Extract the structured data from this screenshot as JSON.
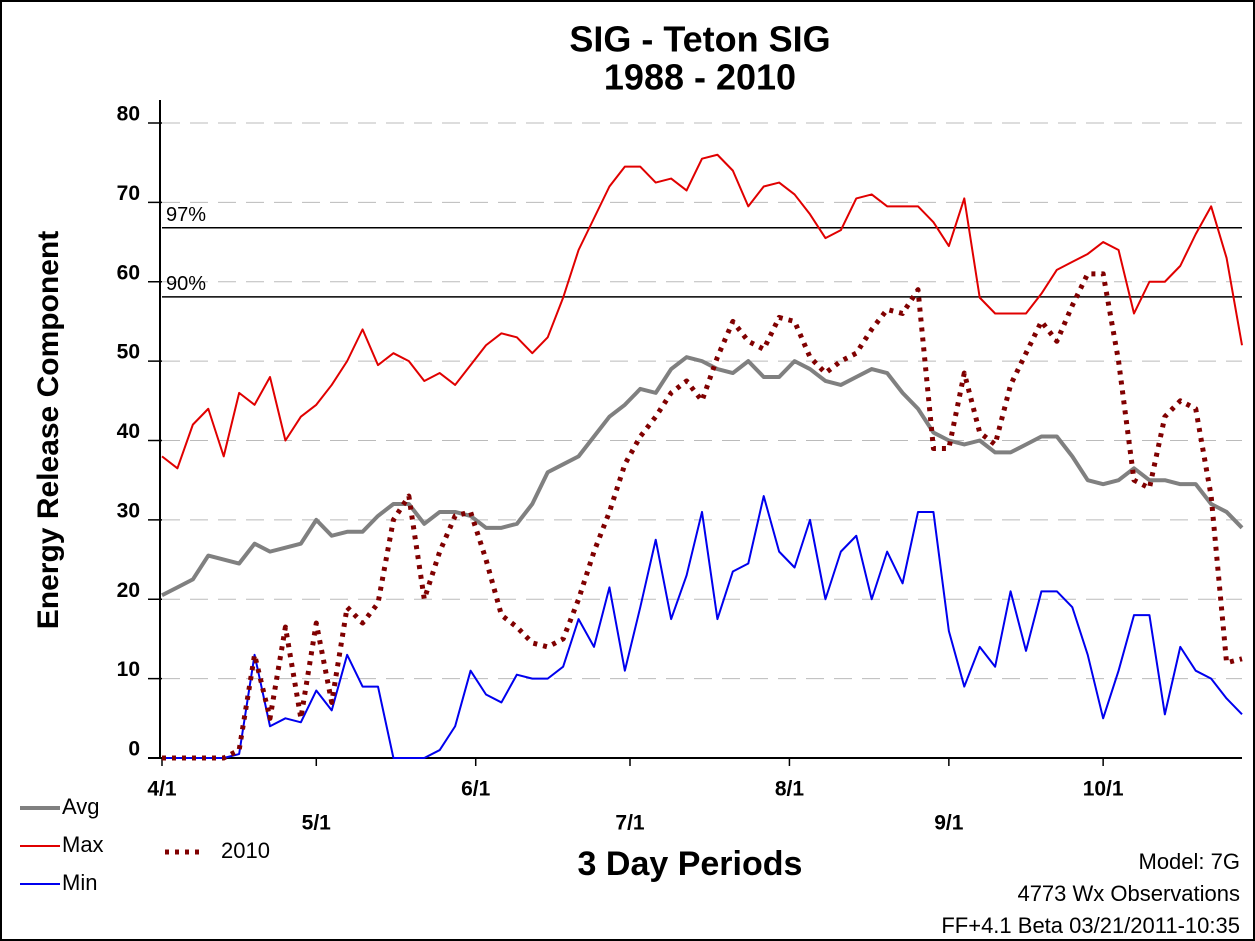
{
  "chart_data": {
    "type": "line",
    "title": "SIG - Teton SIG",
    "subtitle": "1988 - 2010",
    "y_label": "Energy Release Component",
    "x_label": "3 Day Periods",
    "notes": [
      "Model: 7G",
      "4773 Wx Observations",
      "FF+4.1 Beta 03/21/2011-10:35"
    ],
    "reference_lines": [
      {
        "label": "97%",
        "value": 66.8
      },
      {
        "label": "90%",
        "value": 58.1
      }
    ],
    "x": [
      0,
      3,
      6,
      9,
      12,
      15,
      18,
      21,
      24,
      27,
      30,
      33,
      36,
      39,
      42,
      45,
      48,
      51,
      54,
      57,
      60,
      63,
      66,
      69,
      72,
      75,
      78,
      81,
      84,
      87,
      90,
      93,
      96,
      99,
      102,
      105,
      108,
      111,
      114,
      117,
      120,
      123,
      126,
      129,
      132,
      135,
      138,
      141,
      144,
      147,
      150,
      153,
      156,
      159,
      162,
      165,
      168,
      171,
      174,
      177,
      180,
      183,
      186,
      189,
      192,
      195,
      198,
      201,
      204,
      207,
      210
    ],
    "xlim": [
      0,
      210
    ],
    "xticks": [
      {
        "value": 0,
        "label": "4/1"
      },
      {
        "value": 30,
        "label": "5/1"
      },
      {
        "value": 61,
        "label": "6/1"
      },
      {
        "value": 91,
        "label": "7/1"
      },
      {
        "value": 122,
        "label": "8/1"
      },
      {
        "value": 153,
        "label": "9/1"
      },
      {
        "value": 183,
        "label": "10/1"
      }
    ],
    "ylim": [
      0,
      80
    ],
    "yticks": [
      0,
      10,
      20,
      30,
      40,
      50,
      60,
      70,
      80
    ],
    "grid": true,
    "series": [
      {
        "name": "Avg",
        "color": "#808080",
        "style": "solid",
        "values": [
          20.5,
          21.5,
          22.5,
          25.5,
          25,
          24.5,
          27,
          26,
          26.5,
          27,
          30,
          28,
          28.5,
          28.5,
          30.5,
          32,
          32,
          29.5,
          31,
          31,
          30.5,
          29,
          29,
          29.5,
          32,
          36,
          37,
          38,
          40.5,
          43,
          44.5,
          46.5,
          46,
          49,
          50.5,
          50,
          49,
          48.5,
          50,
          48,
          48,
          50,
          49,
          47.5,
          47,
          48,
          49,
          48.5,
          46,
          44,
          41,
          40,
          39.5,
          40,
          38.5,
          38.5,
          39.5,
          40.5,
          40.5,
          38,
          35,
          34.5,
          35,
          36.5,
          35,
          35,
          34.5,
          34.5,
          32,
          31,
          29
        ]
      },
      {
        "name": "Max",
        "color": "#e00000",
        "style": "solid",
        "values": [
          38,
          36.5,
          42,
          44,
          38,
          46,
          44.5,
          48,
          40,
          43,
          44.5,
          47,
          50,
          54,
          49.5,
          51,
          50,
          47.5,
          48.5,
          47,
          49.5,
          52,
          53.5,
          53,
          51,
          53,
          58,
          64,
          68,
          72,
          74.5,
          74.5,
          72.5,
          73,
          71.5,
          75.5,
          76,
          74,
          69.5,
          72,
          72.5,
          71,
          68.5,
          65.5,
          66.5,
          70.5,
          71,
          69.5,
          69.5,
          69.5,
          67.5,
          64.5,
          70.5,
          58,
          56,
          56,
          56,
          58.5,
          61.5,
          62.5,
          63.5,
          65,
          64,
          56,
          60,
          60,
          62,
          66,
          69.5,
          63,
          52
        ]
      },
      {
        "name": "Min",
        "color": "#0000ee",
        "style": "solid",
        "values": [
          0,
          0,
          0,
          0,
          0,
          0.5,
          13,
          4,
          5,
          4.5,
          8.5,
          6,
          13,
          9,
          9,
          0,
          0,
          0,
          1,
          4,
          11,
          8,
          7,
          10.5,
          10,
          10,
          11.5,
          17.5,
          14,
          21.5,
          11,
          19,
          27.5,
          17.5,
          23,
          31,
          17.5,
          23.5,
          24.5,
          33,
          26,
          24,
          30,
          20,
          26,
          28,
          20,
          26,
          22,
          31,
          31,
          16,
          9,
          14,
          11.5,
          21,
          13.5,
          21,
          21,
          19,
          13,
          5,
          11,
          18,
          18,
          5.5,
          14,
          11,
          10,
          7.5,
          5.5
        ]
      },
      {
        "name": "2010",
        "color": "#800000",
        "style": "dotted",
        "values": [
          0,
          0,
          0,
          0,
          0,
          1,
          13,
          5,
          16.5,
          5,
          17,
          7,
          19,
          17,
          19.5,
          30,
          33,
          20,
          26,
          30.5,
          31,
          25,
          18,
          16.5,
          14.5,
          14,
          15,
          20,
          26,
          31,
          37,
          40.5,
          43,
          46,
          47.5,
          45,
          50.5,
          55,
          52.5,
          51.5,
          55.5,
          55,
          50.5,
          48.5,
          50,
          51,
          54,
          56.5,
          56,
          59,
          39,
          39,
          48.5,
          41,
          39.5,
          47,
          51,
          55,
          52.5,
          57,
          61,
          61,
          50,
          35,
          34,
          43,
          45,
          44,
          33,
          12,
          12.5
        ]
      }
    ]
  }
}
